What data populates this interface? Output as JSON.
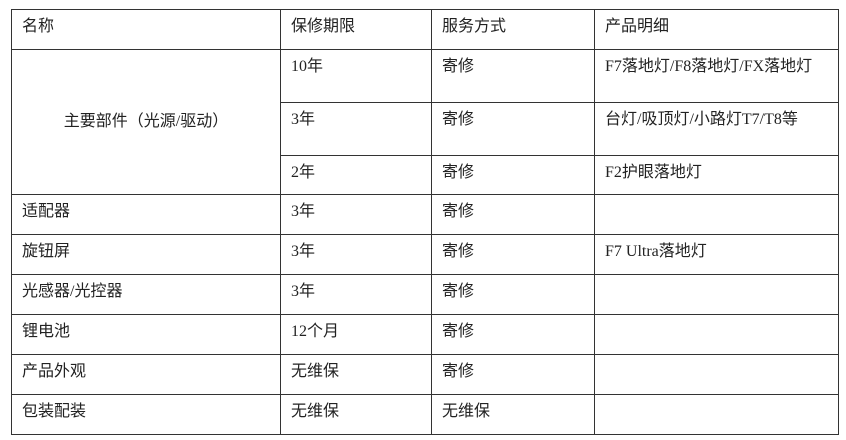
{
  "headers": [
    "名称",
    "保修期限",
    "服务方式",
    "产品明细"
  ],
  "main_part": {
    "name": "主要部件（光源/驱动）",
    "rows": [
      {
        "period": "10年",
        "service": "寄修",
        "detail": "F7落地灯/F8落地灯/FX落地灯"
      },
      {
        "period": "3年",
        "service": "寄修",
        "detail": "台灯/吸顶灯/小路灯T7/T8等"
      },
      {
        "period": "2年",
        "service": "寄修",
        "detail": "F2护眼落地灯"
      }
    ]
  },
  "rows": [
    {
      "name": "适配器",
      "period": "3年",
      "service": "寄修",
      "detail": ""
    },
    {
      "name": "旋钮屏",
      "period": "3年",
      "service": "寄修",
      "detail": "F7 Ultra落地灯"
    },
    {
      "name": "光感器/光控器",
      "period": "3年",
      "service": "寄修",
      "detail": ""
    },
    {
      "name": "锂电池",
      "period": "12个月",
      "service": "寄修",
      "detail": ""
    },
    {
      "name": "产品外观",
      "period": "无维保",
      "service": "寄修",
      "detail": ""
    },
    {
      "name": "包装配装",
      "period": "无维保",
      "service": "无维保",
      "detail": ""
    }
  ]
}
